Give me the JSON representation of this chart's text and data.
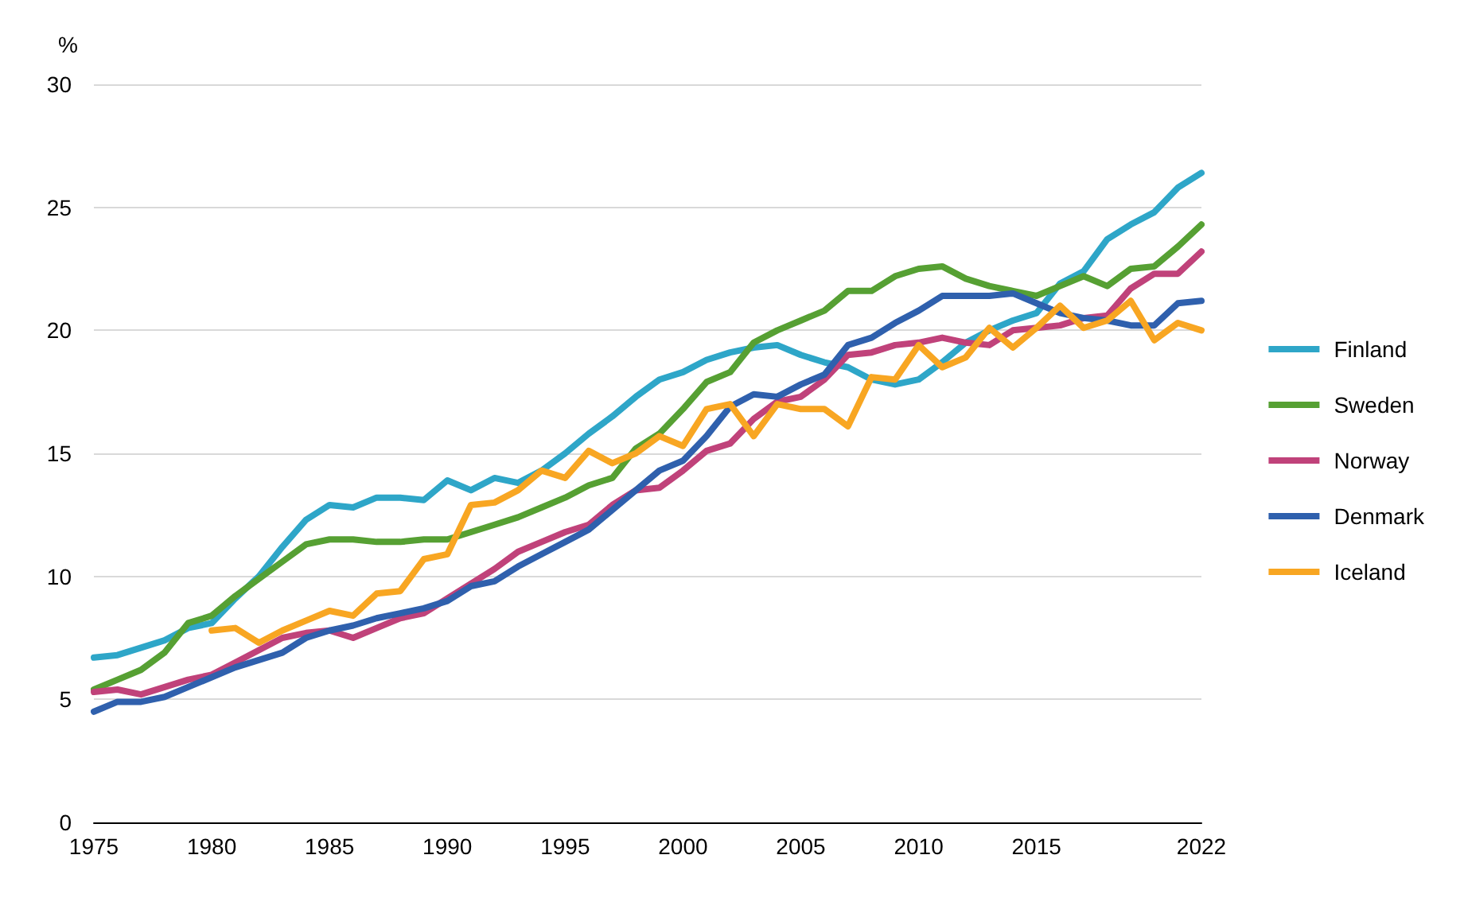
{
  "chart_data": {
    "type": "line",
    "ylabel": "%",
    "x": [
      1975,
      1976,
      1977,
      1978,
      1979,
      1980,
      1981,
      1982,
      1983,
      1984,
      1985,
      1986,
      1987,
      1988,
      1989,
      1990,
      1991,
      1992,
      1993,
      1994,
      1995,
      1996,
      1997,
      1998,
      1999,
      2000,
      2001,
      2002,
      2003,
      2004,
      2005,
      2006,
      2007,
      2008,
      2009,
      2010,
      2011,
      2012,
      2013,
      2014,
      2015,
      2016,
      2017,
      2018,
      2019,
      2020,
      2021,
      2022
    ],
    "series": [
      {
        "name": "Finland",
        "color": "#2ea6c8",
        "values": [
          6.7,
          6.8,
          7.1,
          7.4,
          7.9,
          8.1,
          9.1,
          10.0,
          11.2,
          12.3,
          12.9,
          12.8,
          13.2,
          13.2,
          13.1,
          13.9,
          13.5,
          14.0,
          13.8,
          14.3,
          15.0,
          15.8,
          16.5,
          17.3,
          18.0,
          18.3,
          18.8,
          19.1,
          19.3,
          19.4,
          19.0,
          18.7,
          18.5,
          18.0,
          17.8,
          18.0,
          18.7,
          19.5,
          20.0,
          20.4,
          20.7,
          21.9,
          22.4,
          23.7,
          24.3,
          24.8,
          25.8,
          26.4
        ]
      },
      {
        "name": "Sweden",
        "color": "#56a033",
        "values": [
          5.4,
          5.8,
          6.2,
          6.9,
          8.1,
          8.4,
          9.2,
          9.9,
          10.6,
          11.3,
          11.5,
          11.5,
          11.4,
          11.4,
          11.5,
          11.5,
          11.8,
          12.1,
          12.4,
          12.8,
          13.2,
          13.7,
          14.0,
          15.2,
          15.8,
          16.8,
          17.9,
          18.3,
          19.5,
          20.0,
          20.4,
          20.8,
          21.6,
          21.6,
          22.2,
          22.5,
          22.6,
          22.1,
          21.8,
          21.6,
          21.4,
          21.8,
          22.2,
          21.8,
          22.5,
          22.6,
          23.4,
          24.3
        ]
      },
      {
        "name": "Norway",
        "color": "#c0427a",
        "values": [
          5.3,
          5.4,
          5.2,
          5.5,
          5.8,
          6.0,
          6.5,
          7.0,
          7.5,
          7.7,
          7.8,
          7.5,
          7.9,
          8.3,
          8.5,
          9.1,
          9.7,
          10.3,
          11.0,
          11.4,
          11.8,
          12.1,
          12.9,
          13.5,
          13.6,
          14.3,
          15.1,
          15.4,
          16.4,
          17.1,
          17.3,
          18.0,
          19.0,
          19.1,
          19.4,
          19.5,
          19.7,
          19.5,
          19.4,
          20.0,
          20.1,
          20.2,
          20.5,
          20.6,
          21.7,
          22.3,
          22.3,
          23.2
        ]
      },
      {
        "name": "Denmark",
        "color": "#2f60ad",
        "values": [
          4.5,
          4.9,
          4.9,
          5.1,
          5.5,
          5.9,
          6.3,
          6.6,
          6.9,
          7.5,
          7.8,
          8.0,
          8.3,
          8.5,
          8.7,
          9.0,
          9.6,
          9.8,
          10.4,
          10.9,
          11.4,
          11.9,
          12.7,
          13.5,
          14.3,
          14.7,
          15.7,
          16.9,
          17.4,
          17.3,
          17.8,
          18.2,
          19.4,
          19.7,
          20.3,
          20.8,
          21.4,
          21.4,
          21.4,
          21.5,
          21.1,
          20.7,
          20.5,
          20.4,
          20.2,
          20.2,
          21.1,
          21.2
        ]
      },
      {
        "name": "Iceland",
        "color": "#f8a622",
        "values": [
          null,
          null,
          null,
          null,
          null,
          7.8,
          7.9,
          7.3,
          7.8,
          8.2,
          8.6,
          8.4,
          9.3,
          9.4,
          10.7,
          10.9,
          12.9,
          13.0,
          13.5,
          14.3,
          14.0,
          15.1,
          14.6,
          15.0,
          15.7,
          15.3,
          16.8,
          17.0,
          15.7,
          17.0,
          16.8,
          16.8,
          16.1,
          18.1,
          18.0,
          19.4,
          18.5,
          18.9,
          20.1,
          19.3,
          20.1,
          21.0,
          20.1,
          20.4,
          21.2,
          19.6,
          20.3,
          20.0
        ]
      }
    ],
    "xlim": [
      1975,
      2022
    ],
    "xticks": [
      1975,
      1980,
      1985,
      1990,
      1995,
      2000,
      2005,
      2010,
      2015,
      2022
    ],
    "ylim": [
      0,
      30
    ],
    "yticks": [
      0,
      5,
      10,
      15,
      20,
      25,
      30
    ],
    "grid": "y",
    "legend": "right",
    "marker": "none",
    "line_style": "solid"
  }
}
